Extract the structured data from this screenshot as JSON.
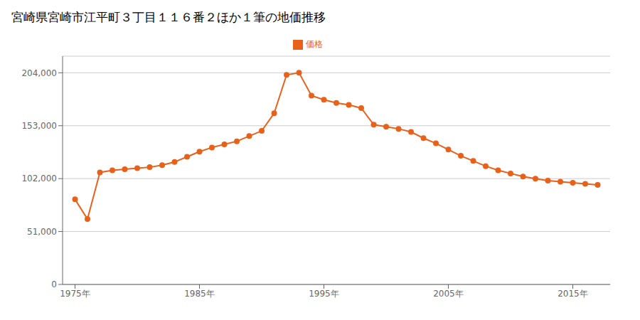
{
  "chart_data": {
    "type": "line",
    "title": "宮崎県宮崎市江平町３丁目１１６番２ほか１筆の地価推移",
    "x": [
      1975,
      1976,
      1977,
      1978,
      1979,
      1980,
      1981,
      1982,
      1983,
      1984,
      1985,
      1986,
      1987,
      1988,
      1989,
      1990,
      1991,
      1992,
      1993,
      1994,
      1995,
      1996,
      1997,
      1998,
      1999,
      2000,
      2001,
      2002,
      2003,
      2004,
      2005,
      2006,
      2007,
      2008,
      2009,
      2010,
      2011,
      2012,
      2013,
      2014,
      2015,
      2016,
      2017
    ],
    "series": [
      {
        "name": "価格",
        "color": "#E8611A",
        "marker": "circle",
        "values": [
          82000,
          63000,
          108000,
          110000,
          111000,
          112000,
          113000,
          115000,
          118000,
          123000,
          128000,
          132000,
          135000,
          138000,
          143000,
          148000,
          165000,
          202000,
          204000,
          182000,
          178000,
          175000,
          173000,
          170000,
          154000,
          152000,
          150000,
          147000,
          141000,
          136000,
          130000,
          124000,
          119000,
          114000,
          110000,
          107000,
          104000,
          102000,
          100000,
          99000,
          98000,
          97000,
          96000
        ]
      }
    ],
    "xlim": [
      1974,
      2018
    ],
    "xticks": [
      {
        "value": 1975,
        "label": "1975年"
      },
      {
        "value": 1985,
        "label": "1985年"
      },
      {
        "value": 1995,
        "label": "1995年"
      },
      {
        "value": 2005,
        "label": "2005年"
      },
      {
        "value": 2015,
        "label": "2015年"
      }
    ],
    "ylim": [
      0,
      220000
    ],
    "yticks": [
      0,
      {
        "value": 51000,
        "label": "51,000"
      },
      {
        "value": 102000,
        "label": "102,000"
      },
      {
        "value": 153000,
        "label": "153,000"
      },
      {
        "value": 204000,
        "label": "204,000"
      }
    ],
    "grid": true,
    "legend": "top"
  }
}
